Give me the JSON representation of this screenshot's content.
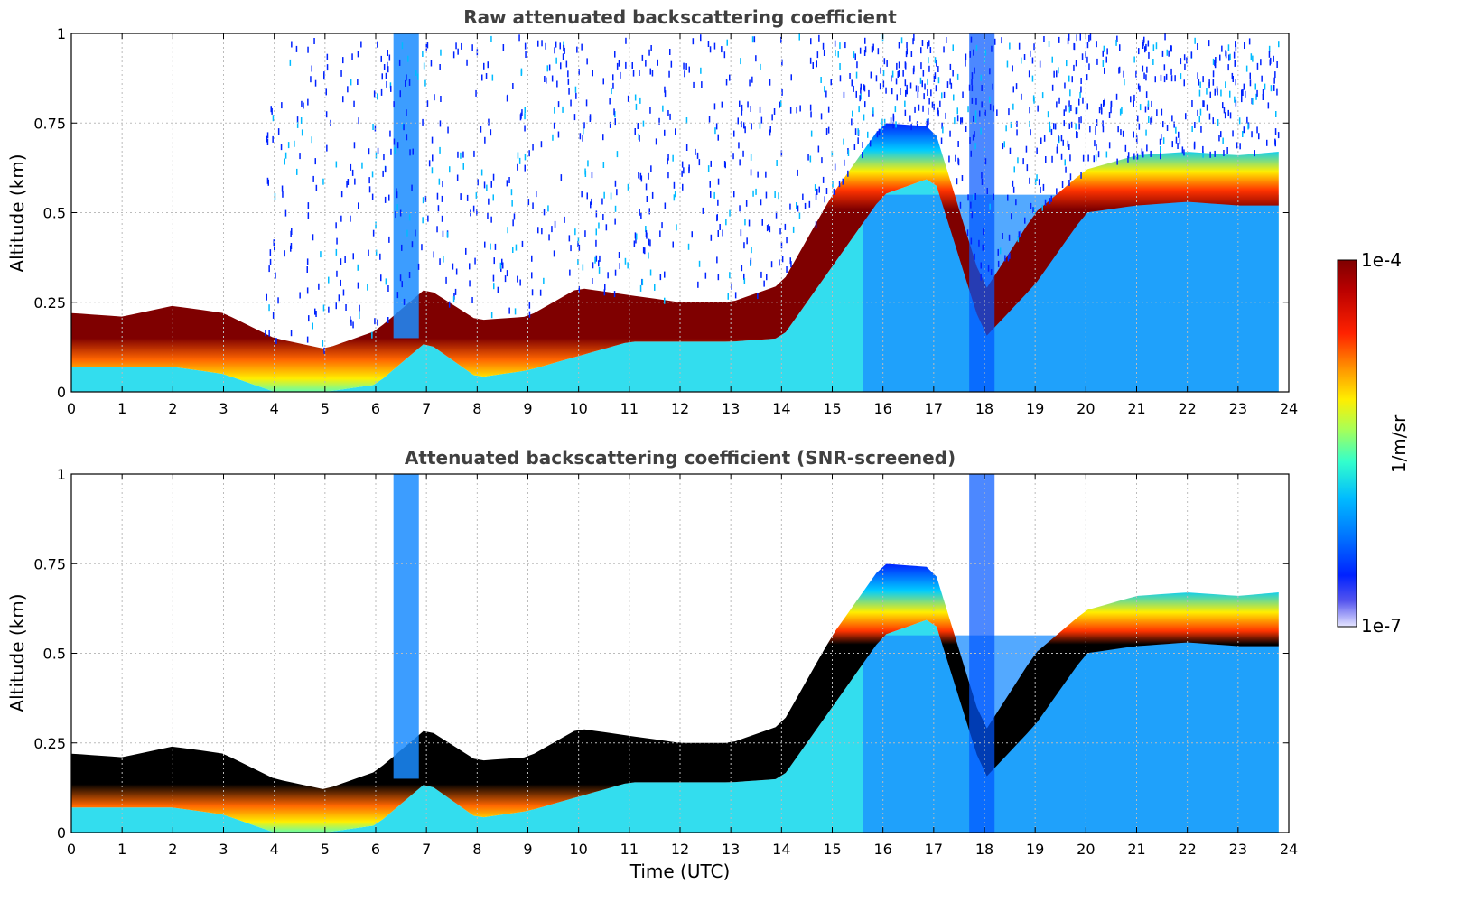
{
  "chart_data": [
    {
      "type": "heatmap",
      "title": "Raw attenuated backscattering coefficient",
      "xlabel": "",
      "ylabel": "Altitude (km)",
      "xlim": [
        0,
        24
      ],
      "ylim": [
        0,
        1
      ],
      "x_ticks": [
        "0",
        "1",
        "2",
        "3",
        "4",
        "5",
        "6",
        "7",
        "8",
        "9",
        "10",
        "11",
        "12",
        "13",
        "14",
        "15",
        "16",
        "17",
        "18",
        "19",
        "20",
        "21",
        "22",
        "23",
        "24"
      ],
      "y_ticks": [
        "0",
        "0.25",
        "0.5",
        "0.75",
        "1"
      ],
      "grid": true,
      "layer_top_km": {
        "x": [
          0,
          1,
          2,
          3,
          4,
          5,
          6,
          7,
          8,
          9,
          10,
          11,
          12,
          13,
          14,
          15,
          16,
          17,
          18,
          19,
          20,
          21,
          22,
          23,
          23.8
        ],
        "y": [
          0.22,
          0.21,
          0.24,
          0.22,
          0.15,
          0.12,
          0.17,
          0.29,
          0.2,
          0.21,
          0.29,
          0.27,
          0.25,
          0.25,
          0.3,
          0.55,
          0.75,
          0.74,
          0.28,
          0.5,
          0.62,
          0.66,
          0.67,
          0.66,
          0.67
        ]
      },
      "layer_base_km": {
        "x": [
          0,
          1,
          2,
          3,
          4,
          5,
          6,
          7,
          8,
          9,
          10,
          11,
          12,
          13,
          14,
          15,
          16,
          17,
          18,
          19,
          20,
          21,
          22,
          23,
          23.8
        ],
        "y": [
          0.07,
          0.07,
          0.07,
          0.05,
          0.0,
          0.0,
          0.02,
          0.14,
          0.04,
          0.06,
          0.1,
          0.14,
          0.14,
          0.14,
          0.15,
          0.35,
          0.55,
          0.6,
          0.15,
          0.3,
          0.5,
          0.52,
          0.53,
          0.52,
          0.52
        ]
      }
    },
    {
      "type": "heatmap",
      "title": "Attenuated backscattering coefficient (SNR-screened)",
      "xlabel": "Time (UTC)",
      "ylabel": "Altitude (km)",
      "xlim": [
        0,
        24
      ],
      "ylim": [
        0,
        1
      ],
      "x_ticks": [
        "0",
        "1",
        "2",
        "3",
        "4",
        "5",
        "6",
        "7",
        "8",
        "9",
        "10",
        "11",
        "12",
        "13",
        "14",
        "15",
        "16",
        "17",
        "18",
        "19",
        "20",
        "21",
        "22",
        "23",
        "24"
      ],
      "y_ticks": [
        "0",
        "0.25",
        "0.5",
        "0.75",
        "1"
      ],
      "grid": true
    }
  ],
  "colorbar": {
    "label": "1/m/sr",
    "max_label": "1e-4",
    "min_label": "1e-7",
    "scale": "log",
    "colors": [
      "#7f0000",
      "#cc0000",
      "#ff3300",
      "#ff9900",
      "#ffee00",
      "#aaff55",
      "#33ffcc",
      "#00ccff",
      "#0088ff",
      "#0033ff",
      "#2222ee",
      "#ccccff"
    ]
  }
}
